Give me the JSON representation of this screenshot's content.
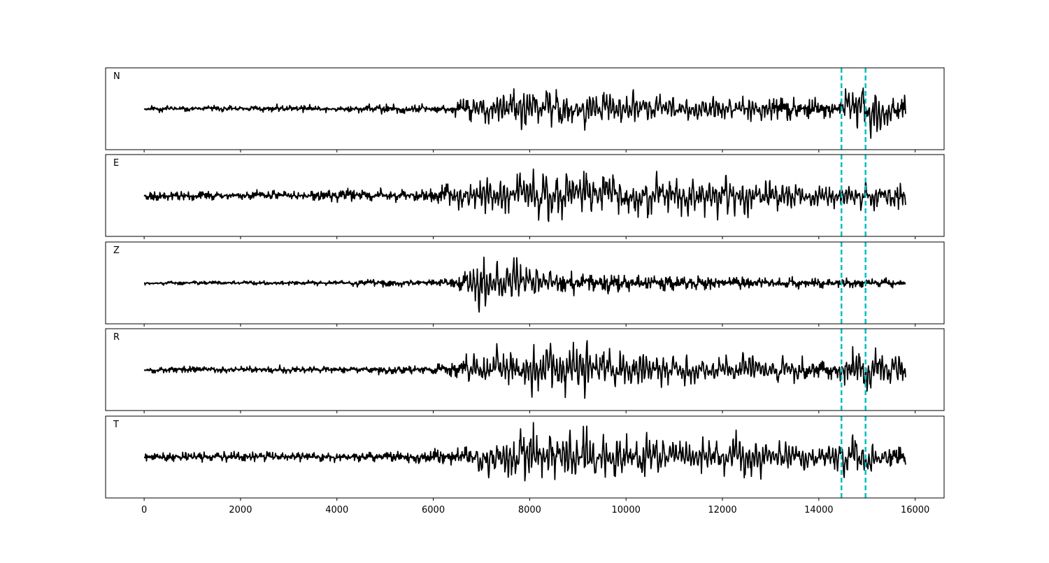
{
  "chart_data": {
    "type": "line",
    "xlim": [
      -800,
      16600
    ],
    "x_ticks": [
      0,
      2000,
      4000,
      6000,
      8000,
      10000,
      12000,
      14000,
      16000
    ],
    "x_tick_labels": [
      "0",
      "2000",
      "4000",
      "6000",
      "8000",
      "10000",
      "12000",
      "14000",
      "16000"
    ],
    "x_range": [
      0,
      15800
    ],
    "markers": {
      "color": "#00bfc4",
      "style": "dashed",
      "x": [
        14470,
        14970
      ]
    },
    "line_color": "#000000",
    "panels": [
      {
        "label": "N",
        "seed": 11,
        "envelope": [
          {
            "x": 0,
            "a": 0.07
          },
          {
            "x": 2000,
            "a": 0.07
          },
          {
            "x": 2300,
            "a": 0.09
          },
          {
            "x": 4400,
            "a": 0.08
          },
          {
            "x": 4600,
            "a": 0.12
          },
          {
            "x": 6000,
            "a": 0.09
          },
          {
            "x": 6500,
            "a": 0.18
          },
          {
            "x": 7000,
            "a": 0.38
          },
          {
            "x": 7800,
            "a": 0.58
          },
          {
            "x": 8200,
            "a": 0.62
          },
          {
            "x": 8600,
            "a": 0.55
          },
          {
            "x": 9500,
            "a": 0.42
          },
          {
            "x": 11000,
            "a": 0.3
          },
          {
            "x": 12600,
            "a": 0.36
          },
          {
            "x": 13500,
            "a": 0.24
          },
          {
            "x": 14400,
            "a": 0.2
          },
          {
            "x": 14700,
            "a": 0.72
          },
          {
            "x": 15200,
            "a": 0.65
          },
          {
            "x": 15500,
            "a": 0.3
          },
          {
            "x": 15800,
            "a": 0.25
          }
        ]
      },
      {
        "label": "E",
        "seed": 23,
        "envelope": [
          {
            "x": 0,
            "a": 0.11
          },
          {
            "x": 2000,
            "a": 0.1
          },
          {
            "x": 3800,
            "a": 0.12
          },
          {
            "x": 4400,
            "a": 0.16
          },
          {
            "x": 5500,
            "a": 0.16
          },
          {
            "x": 6000,
            "a": 0.18
          },
          {
            "x": 6800,
            "a": 0.4
          },
          {
            "x": 8200,
            "a": 0.62
          },
          {
            "x": 8800,
            "a": 0.72
          },
          {
            "x": 9400,
            "a": 0.78
          },
          {
            "x": 10000,
            "a": 0.55
          },
          {
            "x": 11400,
            "a": 0.5
          },
          {
            "x": 12300,
            "a": 0.55
          },
          {
            "x": 13200,
            "a": 0.4
          },
          {
            "x": 14500,
            "a": 0.3
          },
          {
            "x": 15200,
            "a": 0.35
          },
          {
            "x": 15800,
            "a": 0.28
          }
        ]
      },
      {
        "label": "Z",
        "seed": 37,
        "envelope": [
          {
            "x": 0,
            "a": 0.04
          },
          {
            "x": 3000,
            "a": 0.05
          },
          {
            "x": 4300,
            "a": 0.06
          },
          {
            "x": 4500,
            "a": 0.1
          },
          {
            "x": 6000,
            "a": 0.08
          },
          {
            "x": 6500,
            "a": 0.16
          },
          {
            "x": 6800,
            "a": 0.4
          },
          {
            "x": 7000,
            "a": 0.8
          },
          {
            "x": 7500,
            "a": 0.4
          },
          {
            "x": 7750,
            "a": 0.72
          },
          {
            "x": 8100,
            "a": 0.35
          },
          {
            "x": 8600,
            "a": 0.3
          },
          {
            "x": 10500,
            "a": 0.2
          },
          {
            "x": 12000,
            "a": 0.14
          },
          {
            "x": 15800,
            "a": 0.1
          }
        ]
      },
      {
        "label": "R",
        "seed": 53,
        "envelope": [
          {
            "x": 0,
            "a": 0.07
          },
          {
            "x": 2000,
            "a": 0.07
          },
          {
            "x": 2300,
            "a": 0.09
          },
          {
            "x": 4400,
            "a": 0.08
          },
          {
            "x": 4600,
            "a": 0.12
          },
          {
            "x": 6000,
            "a": 0.1
          },
          {
            "x": 6500,
            "a": 0.2
          },
          {
            "x": 7000,
            "a": 0.45
          },
          {
            "x": 8000,
            "a": 0.58
          },
          {
            "x": 8500,
            "a": 0.7
          },
          {
            "x": 9300,
            "a": 0.6
          },
          {
            "x": 10500,
            "a": 0.38
          },
          {
            "x": 12000,
            "a": 0.32
          },
          {
            "x": 12800,
            "a": 0.4
          },
          {
            "x": 14300,
            "a": 0.22
          },
          {
            "x": 14700,
            "a": 0.74
          },
          {
            "x": 15100,
            "a": 0.66
          },
          {
            "x": 15500,
            "a": 0.35
          },
          {
            "x": 15800,
            "a": 0.28
          }
        ]
      },
      {
        "label": "T",
        "seed": 71,
        "envelope": [
          {
            "x": 0,
            "a": 0.1
          },
          {
            "x": 1000,
            "a": 0.12
          },
          {
            "x": 4000,
            "a": 0.1
          },
          {
            "x": 5500,
            "a": 0.13
          },
          {
            "x": 6500,
            "a": 0.18
          },
          {
            "x": 7200,
            "a": 0.45
          },
          {
            "x": 8200,
            "a": 0.82
          },
          {
            "x": 8600,
            "a": 0.65
          },
          {
            "x": 9300,
            "a": 0.6
          },
          {
            "x": 10500,
            "a": 0.5
          },
          {
            "x": 11500,
            "a": 0.42
          },
          {
            "x": 12200,
            "a": 0.55
          },
          {
            "x": 13500,
            "a": 0.3
          },
          {
            "x": 14700,
            "a": 0.5
          },
          {
            "x": 15000,
            "a": 0.38
          },
          {
            "x": 15800,
            "a": 0.25
          }
        ]
      }
    ]
  }
}
